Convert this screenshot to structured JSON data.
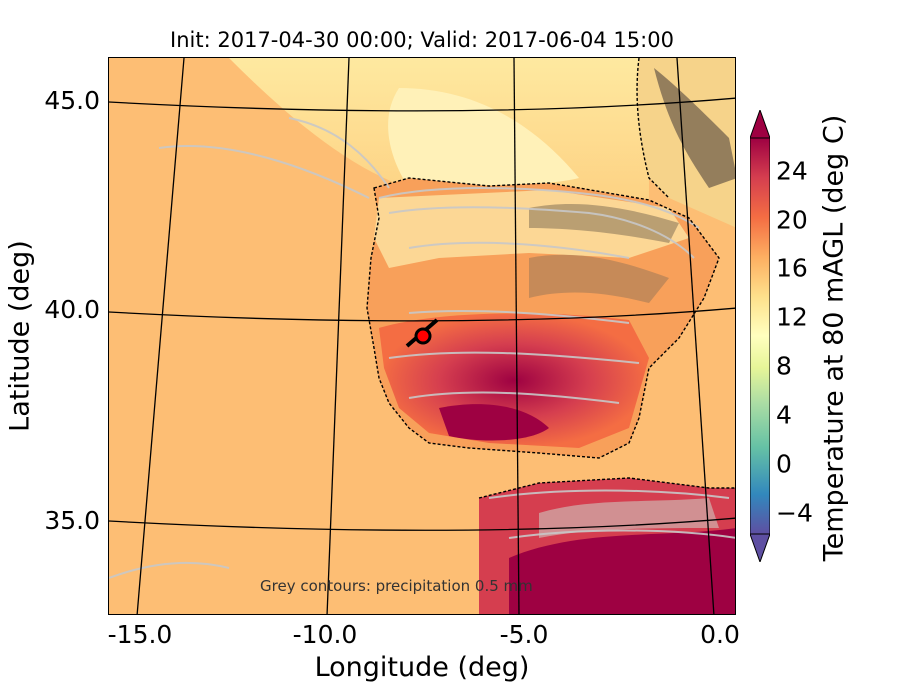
{
  "title": "Init: 2017-04-30 00:00; Valid: 2017-06-04 15:00",
  "xlabel": "Longitude (deg)",
  "ylabel": "Latitude (deg)",
  "x_ticks": [
    "-15.0",
    "-10.0",
    "-5.0",
    "0.0"
  ],
  "y_ticks": [
    "45.0",
    "40.0",
    "35.0"
  ],
  "note": "Grey contours: precipitation    0.5 mm",
  "colorbar": {
    "label": "Temperature at 80 mAGL (deg C)",
    "ticks": [
      "24",
      "20",
      "16",
      "12",
      "8",
      "4",
      "0",
      "−4"
    ],
    "range": [
      -8,
      28
    ],
    "colors": [
      "#5e4fa2",
      "#3288bd",
      "#66c2a5",
      "#abdda4",
      "#e6f598",
      "#ffffbf",
      "#fee08b",
      "#fdae61",
      "#f46d43",
      "#d53e4f",
      "#9e0142"
    ]
  },
  "chart_data": {
    "type": "map",
    "projection": "conic",
    "x_axis": {
      "label": "Longitude (deg)",
      "range": [
        -15.5,
        0.0
      ]
    },
    "y_axis": {
      "label": "Latitude (deg)",
      "range": [
        33.0,
        46.0
      ]
    },
    "field": "Temperature at 80 mAGL (deg C)",
    "marker": {
      "lon": -7.6,
      "lat": 39.4,
      "color": "#ff0000"
    },
    "overlay": "grey precipitation contours"
  }
}
